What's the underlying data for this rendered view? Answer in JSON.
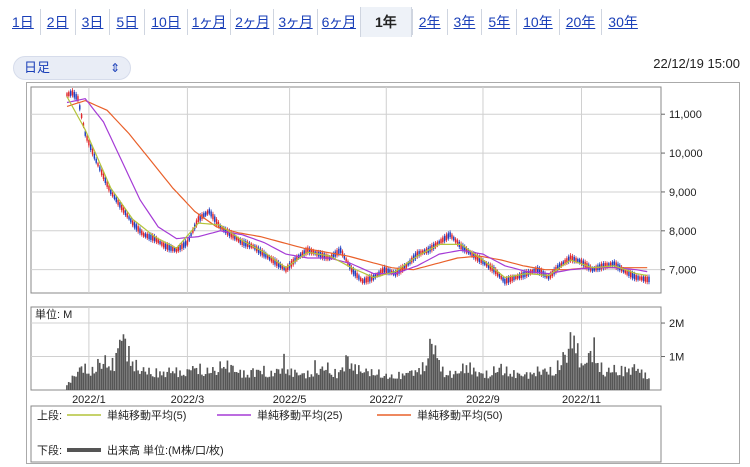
{
  "tabs": [
    {
      "label": "1日",
      "active": false
    },
    {
      "label": "2日",
      "active": false
    },
    {
      "label": "3日",
      "active": false
    },
    {
      "label": "5日",
      "active": false
    },
    {
      "label": "10日",
      "active": false
    },
    {
      "label": "1ヶ月",
      "active": false
    },
    {
      "label": "2ヶ月",
      "active": false
    },
    {
      "label": "3ヶ月",
      "active": false
    },
    {
      "label": "6ヶ月",
      "active": false
    },
    {
      "label": "1年",
      "active": true
    },
    {
      "label": "2年",
      "active": false
    },
    {
      "label": "3年",
      "active": false
    },
    {
      "label": "5年",
      "active": false
    },
    {
      "label": "10年",
      "active": false
    },
    {
      "label": "20年",
      "active": false
    },
    {
      "label": "30年",
      "active": false
    }
  ],
  "select": {
    "value": "日足"
  },
  "timestamp": "22/12/19 15:00",
  "colors": {
    "up": "#e0262a",
    "down": "#1f3fc0",
    "ma5": "#b4c43a",
    "ma25": "#a53bd6",
    "ma50": "#e9602a",
    "volume": "#555555",
    "grid": "#d0d0d0"
  },
  "chart_data": [
    {
      "type": "candlestick",
      "title": "",
      "x_ticks": [
        "2022/1",
        "2022/3",
        "2022/5",
        "2022/7",
        "2022/9",
        "2022/11"
      ],
      "y_ticks": [
        7000,
        8000,
        9000,
        10000,
        11000
      ],
      "y_tick_labels": [
        "7,000",
        "8,000",
        "9,000",
        "10,000",
        "11,000"
      ],
      "ylim": [
        6400,
        11700
      ],
      "price_path": [
        [
          0,
          11500
        ],
        [
          3,
          11550
        ],
        [
          6,
          11400
        ],
        [
          10,
          10500
        ],
        [
          16,
          9800
        ],
        [
          24,
          9000
        ],
        [
          30,
          8600
        ],
        [
          36,
          8200
        ],
        [
          42,
          7900
        ],
        [
          48,
          7800
        ],
        [
          54,
          7600
        ],
        [
          60,
          7500
        ],
        [
          66,
          7700
        ],
        [
          72,
          8300
        ],
        [
          78,
          8500
        ],
        [
          84,
          8100
        ],
        [
          90,
          7900
        ],
        [
          96,
          7700
        ],
        [
          102,
          7600
        ],
        [
          108,
          7400
        ],
        [
          114,
          7200
        ],
        [
          120,
          7000
        ],
        [
          126,
          7300
        ],
        [
          132,
          7500
        ],
        [
          138,
          7400
        ],
        [
          144,
          7300
        ],
        [
          150,
          7500
        ],
        [
          156,
          7000
        ],
        [
          162,
          6700
        ],
        [
          168,
          6800
        ],
        [
          174,
          7000
        ],
        [
          180,
          6900
        ],
        [
          186,
          7100
        ],
        [
          192,
          7400
        ],
        [
          198,
          7500
        ],
        [
          204,
          7700
        ],
        [
          210,
          7900
        ],
        [
          216,
          7600
        ],
        [
          222,
          7400
        ],
        [
          228,
          7200
        ],
        [
          234,
          7000
        ],
        [
          240,
          6700
        ],
        [
          246,
          6800
        ],
        [
          252,
          6900
        ],
        [
          258,
          7000
        ],
        [
          264,
          6800
        ],
        [
          270,
          7100
        ],
        [
          276,
          7300
        ],
        [
          282,
          7200
        ],
        [
          288,
          7000
        ],
        [
          294,
          7100
        ],
        [
          300,
          7150
        ],
        [
          306,
          6950
        ],
        [
          312,
          6800
        ],
        [
          318,
          6750
        ]
      ],
      "ma5": [
        [
          0,
          11450
        ],
        [
          10,
          10600
        ],
        [
          24,
          9100
        ],
        [
          36,
          8300
        ],
        [
          48,
          7850
        ],
        [
          60,
          7550
        ],
        [
          72,
          8200
        ],
        [
          84,
          8150
        ],
        [
          96,
          7750
        ],
        [
          108,
          7450
        ],
        [
          120,
          7050
        ],
        [
          132,
          7450
        ],
        [
          144,
          7350
        ],
        [
          156,
          7050
        ],
        [
          168,
          6800
        ],
        [
          180,
          6950
        ],
        [
          192,
          7350
        ],
        [
          204,
          7650
        ],
        [
          216,
          7650
        ],
        [
          228,
          7250
        ],
        [
          240,
          6800
        ],
        [
          252,
          6900
        ],
        [
          264,
          6850
        ],
        [
          276,
          7250
        ],
        [
          288,
          7050
        ],
        [
          300,
          7100
        ],
        [
          312,
          6900
        ],
        [
          318,
          6850
        ]
      ],
      "ma25": [
        [
          0,
          11300
        ],
        [
          10,
          11400
        ],
        [
          20,
          10800
        ],
        [
          30,
          9800
        ],
        [
          40,
          8800
        ],
        [
          50,
          8100
        ],
        [
          60,
          7800
        ],
        [
          72,
          7850
        ],
        [
          84,
          8000
        ],
        [
          96,
          7900
        ],
        [
          108,
          7700
        ],
        [
          120,
          7400
        ],
        [
          132,
          7300
        ],
        [
          144,
          7300
        ],
        [
          156,
          7150
        ],
        [
          168,
          6900
        ],
        [
          180,
          6900
        ],
        [
          192,
          7100
        ],
        [
          204,
          7400
        ],
        [
          216,
          7500
        ],
        [
          228,
          7400
        ],
        [
          240,
          7100
        ],
        [
          252,
          6950
        ],
        [
          264,
          6900
        ],
        [
          276,
          7000
        ],
        [
          288,
          7050
        ],
        [
          300,
          7050
        ],
        [
          312,
          7000
        ],
        [
          318,
          6950
        ]
      ],
      "ma50": [
        [
          0,
          11200
        ],
        [
          10,
          11350
        ],
        [
          22,
          11100
        ],
        [
          34,
          10500
        ],
        [
          46,
          9800
        ],
        [
          58,
          9100
        ],
        [
          70,
          8500
        ],
        [
          82,
          8100
        ],
        [
          94,
          7950
        ],
        [
          106,
          7850
        ],
        [
          118,
          7700
        ],
        [
          130,
          7550
        ],
        [
          142,
          7450
        ],
        [
          154,
          7350
        ],
        [
          166,
          7200
        ],
        [
          178,
          7050
        ],
        [
          190,
          7000
        ],
        [
          202,
          7150
        ],
        [
          214,
          7300
        ],
        [
          226,
          7350
        ],
        [
          238,
          7250
        ],
        [
          250,
          7100
        ],
        [
          262,
          7000
        ],
        [
          274,
          7000
        ],
        [
          286,
          7050
        ],
        [
          298,
          7050
        ],
        [
          310,
          7050
        ],
        [
          318,
          7050
        ]
      ]
    },
    {
      "type": "bar",
      "title": "",
      "unit_label": "単位: M",
      "y_ticks": [
        1,
        2
      ],
      "y_tick_labels": [
        "1M",
        "2M"
      ],
      "ylim": [
        0,
        2.3
      ],
      "volume_profile": [
        [
          0,
          0.2
        ],
        [
          8,
          0.9
        ],
        [
          14,
          0.7
        ],
        [
          20,
          1.1
        ],
        [
          26,
          1.0
        ],
        [
          30,
          2.3
        ],
        [
          34,
          1.2
        ],
        [
          40,
          0.8
        ],
        [
          46,
          0.7
        ],
        [
          52,
          0.6
        ],
        [
          58,
          0.8
        ],
        [
          64,
          0.6
        ],
        [
          70,
          0.9
        ],
        [
          76,
          0.7
        ],
        [
          82,
          0.8
        ],
        [
          88,
          1.0
        ],
        [
          94,
          0.7
        ],
        [
          100,
          0.6
        ],
        [
          106,
          0.8
        ],
        [
          112,
          0.6
        ],
        [
          118,
          0.9
        ],
        [
          124,
          0.7
        ],
        [
          130,
          0.6
        ],
        [
          136,
          0.7
        ],
        [
          142,
          0.9
        ],
        [
          148,
          0.6
        ],
        [
          154,
          1.1
        ],
        [
          160,
          0.8
        ],
        [
          166,
          0.7
        ],
        [
          172,
          0.6
        ],
        [
          178,
          0.5
        ],
        [
          184,
          0.6
        ],
        [
          190,
          0.7
        ],
        [
          196,
          0.9
        ],
        [
          200,
          1.9
        ],
        [
          206,
          0.7
        ],
        [
          212,
          0.6
        ],
        [
          218,
          0.9
        ],
        [
          224,
          0.7
        ],
        [
          230,
          0.6
        ],
        [
          236,
          0.8
        ],
        [
          242,
          0.7
        ],
        [
          248,
          0.6
        ],
        [
          254,
          0.6
        ],
        [
          260,
          0.8
        ],
        [
          266,
          0.7
        ],
        [
          272,
          1.1
        ],
        [
          278,
          2.2
        ],
        [
          282,
          0.9
        ],
        [
          288,
          1.5
        ],
        [
          294,
          0.7
        ],
        [
          300,
          0.8
        ],
        [
          306,
          0.7
        ],
        [
          312,
          0.9
        ],
        [
          318,
          0.5
        ]
      ]
    }
  ],
  "legend": {
    "upper_label": "上段:",
    "ma5_label": "単純移動平均(5)",
    "ma25_label": "単純移動平均(25)",
    "ma50_label": "単純移動平均(50)",
    "lower_label": "下段:",
    "volume_label": "出来高 単位:(M株/口/枚)"
  }
}
